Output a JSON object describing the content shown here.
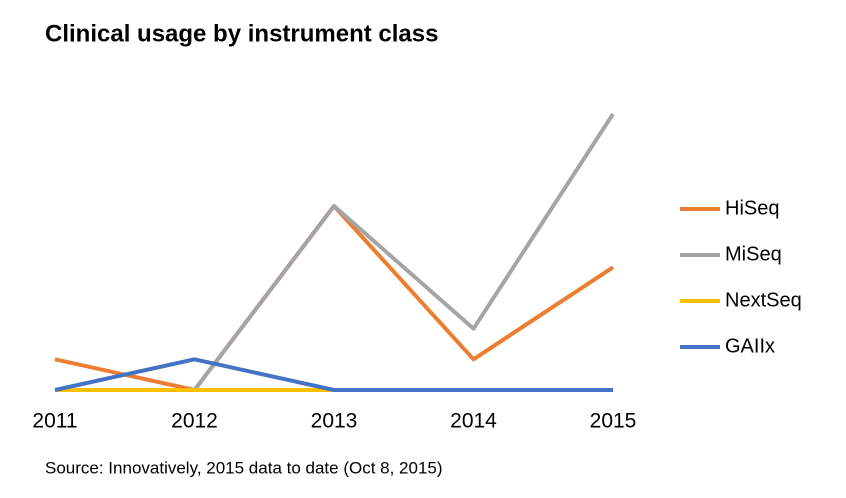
{
  "chart_data": {
    "type": "line",
    "title": "Clinical usage by instrument class",
    "source": "Source: Innovatively, 2015 data to date (Oct 8, 2015)",
    "categories": [
      "2011",
      "2012",
      "2013",
      "2014",
      "2015"
    ],
    "series": [
      {
        "name": "HiSeq",
        "color": "#ed7d31",
        "values": [
          1,
          0,
          6,
          1,
          4
        ]
      },
      {
        "name": "MiSeq",
        "color": "#a5a5a5",
        "values": [
          null,
          0,
          6,
          2,
          9
        ]
      },
      {
        "name": "NextSeq",
        "color": "#ffc000",
        "values": [
          0,
          0,
          0,
          0,
          0
        ]
      },
      {
        "name": "GAIIx",
        "color": "#4472c4",
        "values": [
          0,
          1,
          0,
          0,
          0
        ]
      }
    ],
    "ylim": [
      0,
      9
    ],
    "legend": "right"
  }
}
